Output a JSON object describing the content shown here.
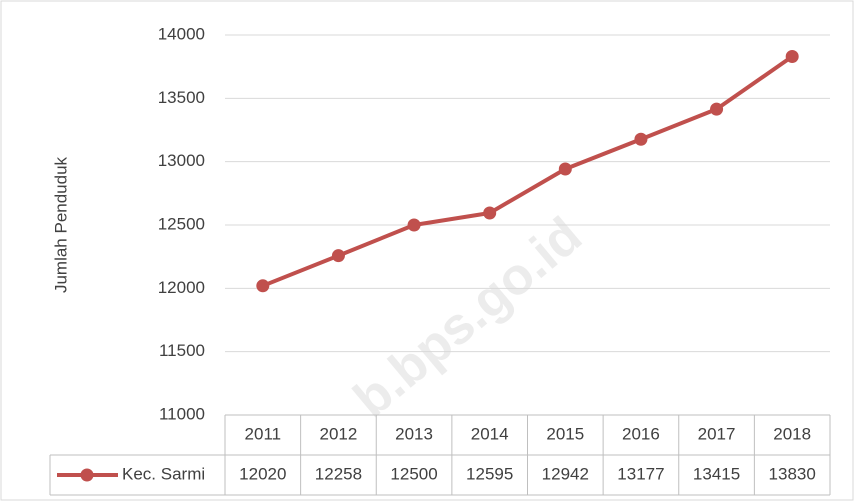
{
  "chart_data": {
    "type": "line",
    "y_axis_label": "Jumlah Penduduk",
    "watermark": "b.bps.go.id",
    "categories": [
      "2011",
      "2012",
      "2013",
      "2014",
      "2015",
      "2016",
      "2017",
      "2018"
    ],
    "series": [
      {
        "name": "Kec. Sarmi",
        "color": "#c0504d",
        "values": [
          12020,
          12258,
          12500,
          12595,
          12942,
          13177,
          13415,
          13830
        ]
      }
    ],
    "ylim": [
      11000,
      14000
    ],
    "yticks": [
      11000,
      11500,
      12000,
      12500,
      13000,
      13500,
      14000
    ],
    "grid": true,
    "data_table": true
  }
}
